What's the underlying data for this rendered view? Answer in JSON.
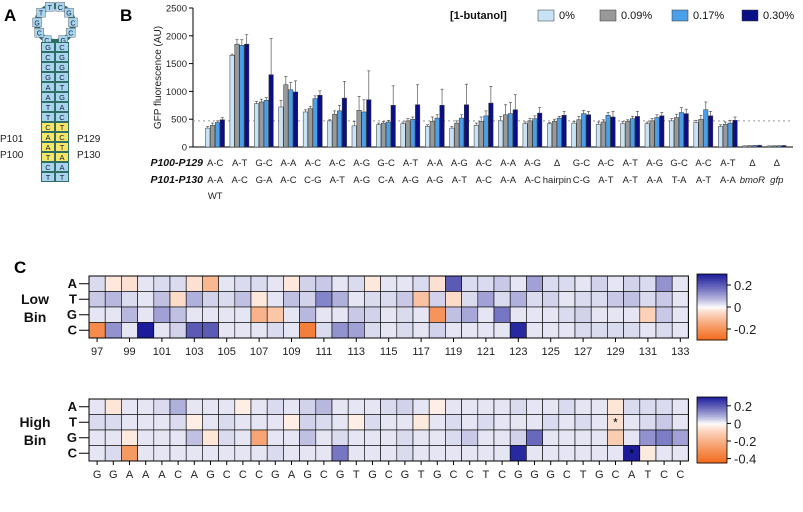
{
  "colors": {
    "series": [
      "#c8e3f5",
      "#999999",
      "#4b9fe8",
      "#0a0f85"
    ],
    "neg": "#f26b1c",
    "pos": "#1c1c9a",
    "hairpin_blue": "#a9d4f0",
    "hairpin_yellow": "#f6e66a",
    "hairpin_green": "#2f6f63"
  },
  "panels": {
    "a_label": "A",
    "b_label": "B",
    "c_label": "C"
  },
  "hairpin": {
    "loop_bases": [
      "C",
      "C",
      "G",
      "T",
      "T",
      "C",
      "G",
      "C",
      "C",
      "G"
    ],
    "stem_left": [
      "G",
      "C",
      "C",
      "G",
      "A",
      "A",
      "T",
      "T",
      "C",
      "A",
      "A",
      "T",
      "C",
      "T"
    ],
    "stem_right": [
      "C",
      "G",
      "G",
      "C",
      "T",
      "G",
      "A",
      "C",
      "T",
      "C",
      "T",
      "A",
      "A",
      "T"
    ],
    "labels": {
      "p101": "P101",
      "p100": "P100",
      "p129": "P129",
      "p130": "P130"
    }
  },
  "chart_data": [
    {
      "type": "bar",
      "title": "",
      "ylabel": "GFP fluorescence (AU)",
      "ylim": [
        0,
        2500
      ],
      "yticks": [
        0,
        500,
        1000,
        1500,
        2000,
        2500
      ],
      "legend_title": "[1-butanol]",
      "legend_position": "top-right",
      "reference_line": 470,
      "row_labels": [
        "P100-P129",
        "P101-P130"
      ],
      "categories": [
        {
          "top": "A-C",
          "bottom": "A-A",
          "extra": "WT"
        },
        {
          "top": "A-T",
          "bottom": "A-C",
          "extra": ""
        },
        {
          "top": "G-C",
          "bottom": "G-A",
          "extra": ""
        },
        {
          "top": "A-A",
          "bottom": "A-C",
          "extra": ""
        },
        {
          "top": "A-C",
          "bottom": "C-G",
          "extra": ""
        },
        {
          "top": "A-C",
          "bottom": "A-T",
          "extra": ""
        },
        {
          "top": "A-G",
          "bottom": "A-G",
          "extra": ""
        },
        {
          "top": "G-C",
          "bottom": "C-A",
          "extra": ""
        },
        {
          "top": "A-T",
          "bottom": "A-G",
          "extra": ""
        },
        {
          "top": "A-A",
          "bottom": "A-G",
          "extra": ""
        },
        {
          "top": "A-G",
          "bottom": "A-T",
          "extra": ""
        },
        {
          "top": "A-C",
          "bottom": "A-C",
          "extra": ""
        },
        {
          "top": "A-A",
          "bottom": "A-A",
          "extra": ""
        },
        {
          "top": "A-G",
          "bottom": "A-C",
          "extra": ""
        },
        {
          "top": "Δ",
          "bottom": "hairpin",
          "extra": ""
        },
        {
          "top": "G-C",
          "bottom": "C-G",
          "extra": ""
        },
        {
          "top": "A-C",
          "bottom": "A-T",
          "extra": ""
        },
        {
          "top": "A-T",
          "bottom": "A-T",
          "extra": ""
        },
        {
          "top": "A-G",
          "bottom": "A-A",
          "extra": ""
        },
        {
          "top": "G-C",
          "bottom": "T-A",
          "extra": ""
        },
        {
          "top": "A-C",
          "bottom": "A-T",
          "extra": ""
        },
        {
          "top": "A-T",
          "bottom": "A-A",
          "extra": ""
        },
        {
          "top": "Δ",
          "bottom": "bmoR",
          "extra": ""
        },
        {
          "top": "Δ",
          "bottom": "gfp",
          "extra": ""
        }
      ],
      "series": [
        {
          "name": "0%",
          "values": [
            340,
            1650,
            780,
            720,
            630,
            470,
            380,
            400,
            420,
            370,
            340,
            390,
            470,
            420,
            420,
            430,
            410,
            420,
            420,
            470,
            440,
            370,
            20,
            18
          ],
          "errors": [
            30,
            20,
            40,
            120,
            40,
            20,
            80,
            30,
            30,
            30,
            30,
            40,
            80,
            30,
            20,
            30,
            40,
            40,
            30,
            40,
            40,
            30,
            3,
            3
          ]
        },
        {
          "name": "0.09%",
          "values": [
            390,
            1850,
            810,
            1120,
            690,
            590,
            660,
            430,
            470,
            460,
            430,
            460,
            580,
            470,
            460,
            490,
            450,
            460,
            470,
            530,
            500,
            410,
            22,
            20
          ],
          "errors": [
            40,
            80,
            50,
            150,
            40,
            60,
            250,
            30,
            40,
            80,
            40,
            80,
            180,
            40,
            40,
            60,
            40,
            30,
            40,
            60,
            70,
            40,
            3,
            3
          ]
        },
        {
          "name": "0.17%",
          "values": [
            440,
            1830,
            840,
            1030,
            870,
            650,
            630,
            450,
            500,
            520,
            520,
            560,
            600,
            510,
            520,
            600,
            570,
            510,
            530,
            620,
            670,
            430,
            25,
            22
          ],
          "errors": [
            30,
            100,
            50,
            130,
            50,
            100,
            220,
            30,
            40,
            60,
            60,
            90,
            200,
            50,
            30,
            60,
            50,
            40,
            50,
            90,
            140,
            50,
            3,
            3
          ]
        },
        {
          "name": "0.30%",
          "values": [
            490,
            1850,
            1300,
            990,
            930,
            880,
            850,
            750,
            760,
            750,
            760,
            790,
            670,
            610,
            570,
            580,
            540,
            550,
            560,
            600,
            560,
            480,
            28,
            25
          ],
          "errors": [
            40,
            170,
            650,
            200,
            80,
            300,
            520,
            350,
            360,
            290,
            370,
            300,
            270,
            100,
            70,
            60,
            100,
            90,
            60,
            80,
            80,
            60,
            4,
            3
          ]
        }
      ]
    },
    {
      "type": "heatmap",
      "title": "Low Bin",
      "row_label_1": "Low",
      "row_label_2": "Bin",
      "rows": [
        "A",
        "T",
        "G",
        "C"
      ],
      "x_start": 97,
      "x_ticks": [
        97,
        99,
        101,
        103,
        105,
        107,
        109,
        111,
        113,
        115,
        117,
        119,
        121,
        123,
        125,
        127,
        129,
        131,
        133
      ],
      "colorbar_ticks": [
        0.2,
        0,
        -0.2
      ],
      "colorbar_tick_labels": [
        "0.2",
        "0",
        "-0.2"
      ],
      "range": [
        -0.3,
        0.3
      ],
      "values": [
        [
          0.03,
          -0.03,
          -0.04,
          0.02,
          0.03,
          0.03,
          -0.04,
          -0.12,
          0.02,
          0.03,
          0.03,
          0.02,
          -0.03,
          0.04,
          0.05,
          0.02,
          0.03,
          -0.03,
          0.02,
          0.02,
          0.03,
          -0.04,
          0.2,
          0.03,
          0.03,
          0.05,
          0.02,
          0.1,
          0.03,
          0.03,
          0.02,
          0.04,
          0.02,
          0.04,
          0.03,
          0.12,
          0.02
        ],
        [
          0.05,
          0.07,
          0.03,
          0.02,
          0.06,
          -0.05,
          0.08,
          0.04,
          0.03,
          0.06,
          -0.03,
          0.02,
          0.06,
          0.04,
          0.14,
          0.08,
          0.02,
          0.03,
          0.03,
          0.05,
          -0.1,
          0.04,
          -0.05,
          0.03,
          0.1,
          0.03,
          0.08,
          0.03,
          0.04,
          0.02,
          0.03,
          0.03,
          0.05,
          0.06,
          0.03,
          0.05,
          0.02
        ],
        [
          0.02,
          0.02,
          0.07,
          0.02,
          0.1,
          0.06,
          0.02,
          0.02,
          0.02,
          0.02,
          -0.13,
          -0.09,
          0.02,
          0.07,
          0.02,
          0.02,
          0.05,
          0.04,
          0.02,
          0.03,
          0.02,
          -0.2,
          0.06,
          0.09,
          0.02,
          0.16,
          0.02,
          0.02,
          0.02,
          0.03,
          0.04,
          0.02,
          0.02,
          0.02,
          -0.07,
          0.05,
          0.02
        ],
        [
          -0.22,
          0.12,
          0.02,
          0.3,
          0.02,
          0.04,
          0.2,
          0.2,
          0.02,
          0.02,
          0.02,
          0.03,
          0.02,
          -0.25,
          0.03,
          0.12,
          0.1,
          0.03,
          0.02,
          0.03,
          0.02,
          0.04,
          0.02,
          0.02,
          0.02,
          0.02,
          0.28,
          0.02,
          0.02,
          0.02,
          0.03,
          0.03,
          0.03,
          0.03,
          0.02,
          0.03,
          0.02
        ]
      ]
    },
    {
      "type": "heatmap",
      "title": "High Bin",
      "row_label_1": "High",
      "row_label_2": "Bin",
      "rows": [
        "A",
        "T",
        "G",
        "C"
      ],
      "sequence": [
        "G",
        "G",
        "A",
        "A",
        "A",
        "C",
        "A",
        "G",
        "C",
        "C",
        "C",
        "G",
        "A",
        "G",
        "C",
        "G",
        "T",
        "G",
        "C",
        "G",
        "T",
        "G",
        "C",
        "C",
        "T",
        "C",
        "G",
        "G",
        "G",
        "C",
        "T",
        "G",
        "C",
        "A",
        "T",
        "C",
        "C"
      ],
      "colorbar_ticks": [
        0.2,
        0,
        -0.2,
        -0.4
      ],
      "colorbar_tick_labels": [
        "0.2",
        "0",
        "-0.2",
        "-0.4"
      ],
      "range": [
        -0.45,
        0.3
      ],
      "star_symbol": "*",
      "stars": [
        {
          "row": 1,
          "col": 32
        },
        {
          "row": 3,
          "col": 33
        }
      ],
      "values": [
        [
          0.02,
          -0.05,
          0.02,
          0.02,
          0.03,
          0.08,
          0.02,
          0.02,
          0.02,
          -0.03,
          0.02,
          0.03,
          0.02,
          0.04,
          0.07,
          0.02,
          0.02,
          0.02,
          0.03,
          0.04,
          0.02,
          -0.03,
          0.02,
          0.02,
          0.02,
          0.02,
          0.03,
          0.02,
          0.02,
          0.03,
          0.02,
          0.02,
          -0.05,
          0.03,
          0.03,
          0.03,
          0.02
        ],
        [
          0.03,
          0.03,
          0.02,
          0.02,
          0.02,
          0.03,
          -0.03,
          0.02,
          0.03,
          0.02,
          0.02,
          0.02,
          -0.03,
          0.04,
          0.03,
          0.02,
          -0.03,
          0.03,
          0.02,
          0.02,
          -0.04,
          0.02,
          0.03,
          0.02,
          0.03,
          0.02,
          0.02,
          0.02,
          0.03,
          0.02,
          0.03,
          0.02,
          -0.06,
          0.02,
          0.03,
          0.05,
          0.02
        ],
        [
          0.02,
          0.02,
          -0.04,
          0.02,
          0.02,
          0.02,
          0.06,
          -0.05,
          0.03,
          0.02,
          -0.24,
          0.02,
          0.02,
          0.06,
          0.02,
          0.03,
          0.02,
          0.02,
          0.02,
          0.03,
          0.02,
          0.02,
          0.03,
          0.05,
          0.02,
          0.02,
          0.04,
          0.18,
          0.02,
          0.02,
          0.02,
          0.02,
          -0.12,
          0.02,
          0.12,
          0.15,
          0.1
        ],
        [
          0.02,
          0.03,
          -0.28,
          0.02,
          0.02,
          0.02,
          0.02,
          0.02,
          0.02,
          0.02,
          0.02,
          0.03,
          0.02,
          0.02,
          0.02,
          0.16,
          0.02,
          0.02,
          0.02,
          0.03,
          0.02,
          0.02,
          0.02,
          0.02,
          0.02,
          0.02,
          0.28,
          0.02,
          0.02,
          0.02,
          0.02,
          0.02,
          0.02,
          0.3,
          -0.04,
          0.02,
          0.02
        ]
      ]
    }
  ]
}
